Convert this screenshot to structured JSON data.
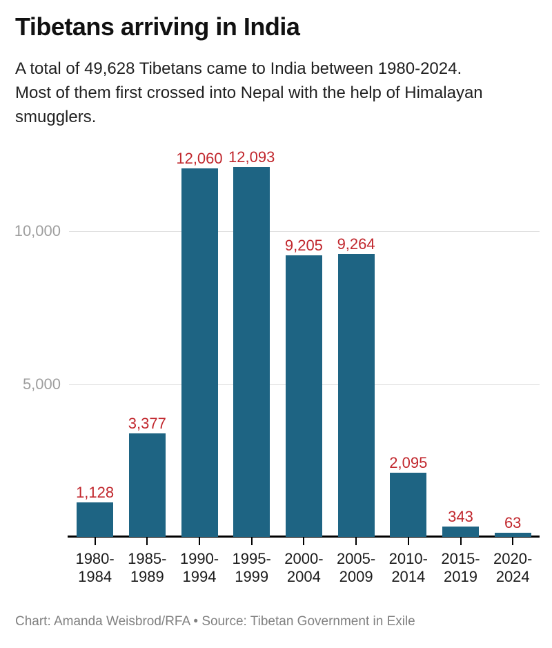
{
  "header": {
    "title": "Tibetans arriving in India",
    "subtitle_lines": [
      "A total of 49,628 Tibetans came to India between 1980-2024.",
      "Most of them first crossed into Nepal with the help of Himalayan",
      "smugglers."
    ]
  },
  "footer": {
    "credit": "Chart: Amanda Weisbrod/RFA • Source: Tibetan Government in Exile"
  },
  "colors": {
    "bar": "#1e6483",
    "value_label": "#c1272d",
    "gridline": "#e0e0e0",
    "axis": "#000000",
    "ytick_label": "#9e9e9e",
    "xtick_label": "#1b1b1b",
    "title": "#111111",
    "subtitle": "#212121",
    "footer": "#808080"
  },
  "chart_data": {
    "type": "bar",
    "title": "Tibetans arriving in India",
    "subtitle": "A total of 49,628 Tibetans came to India between 1980-2024. Most of them first crossed into Nepal with the help of Himalayan smugglers.",
    "total": 49628,
    "categories": [
      "1980-1984",
      "1985-1989",
      "1990-1994",
      "1995-1999",
      "2000-2004",
      "2005-2009",
      "2010-2014",
      "2015-2019",
      "2020-2024"
    ],
    "values": [
      1128,
      3377,
      12060,
      12093,
      9205,
      9264,
      2095,
      343,
      63
    ],
    "value_labels": [
      "1,128",
      "3,377",
      "12,060",
      "12,093",
      "9,205",
      "9,264",
      "2,095",
      "343",
      "63"
    ],
    "xlabel": "",
    "ylabel": "",
    "ylim": [
      0,
      12500
    ],
    "yticks": [
      {
        "value": 5000,
        "label": "5,000"
      },
      {
        "value": 10000,
        "label": "10,000"
      }
    ],
    "grid": "horizontal",
    "legend": "none",
    "credit": "Chart: Amanda Weisbrod/RFA • Source: Tibetan Government in Exile"
  }
}
